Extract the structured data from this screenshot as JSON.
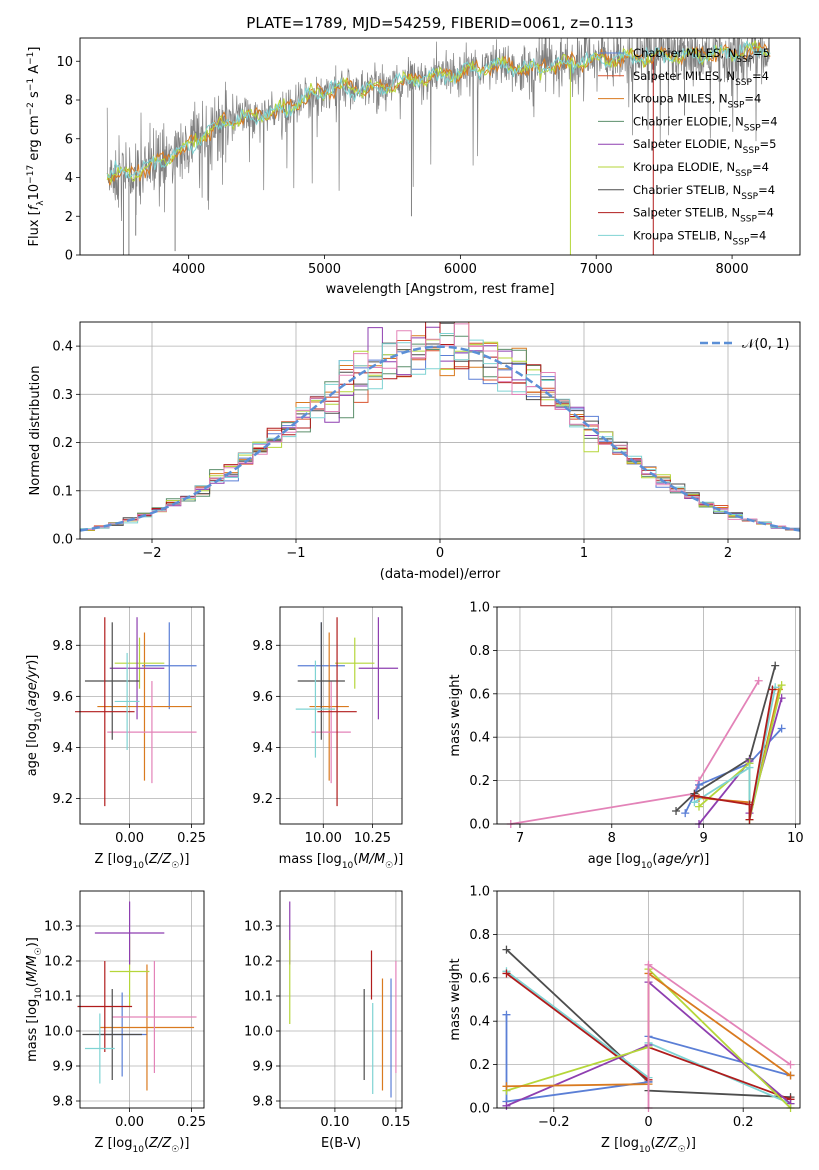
{
  "figure_title": "PLATE=1789, MJD=54259, FIBERID=0061, z=0.113",
  "colors": {
    "chabrier_miles": "#5b7fd6",
    "salpeter_miles": "#d9542f",
    "kroupa_miles": "#d97a1f",
    "chabrier_elodie": "#5c8f6b",
    "salpeter_elodie": "#8e3fb0",
    "kroupa_elodie": "#b5d63a",
    "chabrier_stelib": "#4d4d4d",
    "salpeter_stelib": "#b01c1c",
    "kroupa_stelib": "#7fd3d3",
    "pink": "#e383b8",
    "observed": "#808080",
    "normal_curve": "#5b8fd6",
    "grid": "#b0b0b0"
  },
  "legend_entries": [
    {
      "label": "Chabrier MILES, N",
      "sub": "SSP",
      "tail": "=5",
      "color_key": "chabrier_miles"
    },
    {
      "label": "Salpeter MILES, N",
      "sub": "SSP",
      "tail": "=4",
      "color_key": "salpeter_miles"
    },
    {
      "label": "Kroupa MILES, N",
      "sub": "SSP",
      "tail": "=4",
      "color_key": "kroupa_miles"
    },
    {
      "label": "Chabrier ELODIE, N",
      "sub": "SSP",
      "tail": "=4",
      "color_key": "chabrier_elodie"
    },
    {
      "label": "Salpeter ELODIE, N",
      "sub": "SSP",
      "tail": "=5",
      "color_key": "salpeter_elodie"
    },
    {
      "label": "Kroupa ELODIE, N",
      "sub": "SSP",
      "tail": "=4",
      "color_key": "kroupa_elodie"
    },
    {
      "label": "Chabrier STELIB, N",
      "sub": "SSP",
      "tail": "=4",
      "color_key": "chabrier_stelib"
    },
    {
      "label": "Salpeter STELIB, N",
      "sub": "SSP",
      "tail": "=4",
      "color_key": "salpeter_stelib"
    },
    {
      "label": "Kroupa STELIB, N",
      "sub": "SSP",
      "tail": "=4",
      "color_key": "kroupa_stelib"
    }
  ],
  "chart_data": [
    {
      "id": "spectrum",
      "type": "line",
      "title": "PLATE=1789, MJD=54259, FIBERID=0061, z=0.113",
      "xlabel": "wavelength [Angstrom, rest frame]",
      "ylabel": "Flux [fλ10⁻¹⁷ erg cm⁻² s⁻¹ A⁻¹]",
      "xlim": [
        3200,
        8500
      ],
      "ylim": [
        0,
        11.2
      ],
      "xticks": [
        4000,
        5000,
        6000,
        7000,
        8000
      ],
      "yticks": [
        0,
        2,
        4,
        6,
        8,
        10
      ],
      "continuum": [
        [
          3400,
          4.1
        ],
        [
          3600,
          4.2
        ],
        [
          3800,
          4.9
        ],
        [
          3950,
          5.4
        ],
        [
          4100,
          6.1
        ],
        [
          4300,
          7.0
        ],
        [
          4500,
          7.2
        ],
        [
          4700,
          7.5
        ],
        [
          4900,
          8.2
        ],
        [
          5100,
          8.7
        ],
        [
          5300,
          8.5
        ],
        [
          5500,
          8.8
        ],
        [
          5700,
          9.1
        ],
        [
          5900,
          9.3
        ],
        [
          6100,
          9.6
        ],
        [
          6300,
          9.8
        ],
        [
          6500,
          9.6
        ],
        [
          6700,
          9.8
        ],
        [
          6900,
          10.0
        ],
        [
          7100,
          10.1
        ],
        [
          7300,
          10.2
        ],
        [
          7500,
          10.3
        ],
        [
          7700,
          10.3
        ],
        [
          7900,
          10.4
        ],
        [
          8100,
          10.5
        ],
        [
          8300,
          10.6
        ]
      ],
      "legend_position": "upper right"
    },
    {
      "id": "residuals",
      "type": "histogram",
      "xlabel": "(data-model)/error",
      "ylabel": "Normed distribution",
      "xlim": [
        -2.5,
        2.5
      ],
      "ylim": [
        0,
        0.45
      ],
      "xticks": [
        -2,
        -1,
        0,
        1,
        2
      ],
      "yticks": [
        0.0,
        0.1,
        0.2,
        0.3,
        0.4
      ],
      "bin_width": 0.1,
      "reference_curve_label": "𝒩(0, 1)",
      "legend_position": "upper right"
    },
    {
      "id": "age_vs_Z",
      "type": "errorbar",
      "xlabel": "Z [log10(Z/Z☉)]",
      "ylabel": "age  [log10(age/yr)]",
      "xlim": [
        -0.2,
        0.3
      ],
      "ylim": [
        9.1,
        9.95
      ],
      "xticks": [
        0.0,
        0.25
      ],
      "xtick_labels": [
        "0.00",
        "0.25"
      ],
      "yticks": [
        9.2,
        9.4,
        9.6,
        9.8
      ],
      "points": [
        {
          "color_key": "chabrier_miles",
          "x": 0.16,
          "xerr": 0.11,
          "y": 9.72,
          "yerr": 0.17
        },
        {
          "color_key": "kroupa_miles",
          "x": 0.06,
          "xerr": 0.19,
          "y": 9.56,
          "yerr": 0.29
        },
        {
          "color_key": "kroupa_elodie",
          "x": 0.04,
          "xerr": 0.1,
          "y": 9.73,
          "yerr": 0.1
        },
        {
          "color_key": "salpeter_elodie",
          "x": 0.03,
          "xerr": 0.11,
          "y": 9.71,
          "yerr": 0.2
        },
        {
          "color_key": "pink",
          "x": 0.09,
          "xerr": 0.18,
          "y": 9.46,
          "yerr": 0.2
        },
        {
          "color_key": "chabrier_stelib",
          "x": -0.07,
          "xerr": 0.11,
          "y": 9.66,
          "yerr": 0.23
        },
        {
          "color_key": "salpeter_stelib",
          "x": -0.1,
          "xerr": 0.12,
          "y": 9.54,
          "yerr": 0.37
        },
        {
          "color_key": "kroupa_stelib",
          "x": -0.01,
          "xerr": 0.05,
          "y": 9.58,
          "yerr": 0.19
        }
      ]
    },
    {
      "id": "age_vs_mass",
      "type": "errorbar",
      "xlabel": "mass [log10(M/M☉)]",
      "ylabel": "",
      "xlim": [
        9.78,
        10.4
      ],
      "ylim": [
        9.1,
        9.95
      ],
      "xticks": [
        10.0,
        10.25
      ],
      "xtick_labels": [
        "10.00",
        "10.25"
      ],
      "yticks": [
        9.2,
        9.4,
        9.6,
        9.8
      ],
      "points": [
        {
          "color_key": "chabrier_miles",
          "x": 9.99,
          "xerr": 0.12,
          "y": 9.72,
          "yerr": 0.17
        },
        {
          "color_key": "kroupa_miles",
          "x": 10.03,
          "xerr": 0.1,
          "y": 9.56,
          "yerr": 0.29
        },
        {
          "color_key": "kroupa_elodie",
          "x": 10.16,
          "xerr": 0.1,
          "y": 9.73,
          "yerr": 0.1
        },
        {
          "color_key": "salpeter_elodie",
          "x": 10.28,
          "xerr": 0.1,
          "y": 9.71,
          "yerr": 0.2
        },
        {
          "color_key": "pink",
          "x": 10.04,
          "xerr": 0.1,
          "y": 9.46,
          "yerr": 0.2
        },
        {
          "color_key": "chabrier_stelib",
          "x": 9.99,
          "xerr": 0.12,
          "y": 9.66,
          "yerr": 0.23
        },
        {
          "color_key": "salpeter_stelib",
          "x": 10.07,
          "xerr": 0.1,
          "y": 9.54,
          "yerr": 0.37
        },
        {
          "color_key": "kroupa_stelib",
          "x": 9.96,
          "xerr": 0.1,
          "y": 9.55,
          "yerr": 0.19
        }
      ]
    },
    {
      "id": "mass_weight_vs_age",
      "type": "line",
      "xlabel": "age  [log10(age/yr)]",
      "ylabel": "mass weight",
      "xlim": [
        6.75,
        10.05
      ],
      "ylim": [
        0.0,
        1.0
      ],
      "xticks": [
        7,
        8,
        9,
        10
      ],
      "yticks": [
        0.0,
        0.2,
        0.4,
        0.6,
        0.8,
        1.0
      ],
      "series": [
        {
          "color_key": "pink",
          "points": [
            [
              6.9,
              0.0
            ],
            [
              8.9,
              0.14
            ],
            [
              8.95,
              0.2
            ],
            [
              9.6,
              0.66
            ]
          ]
        },
        {
          "color_key": "chabrier_miles",
          "points": [
            [
              8.8,
              0.05
            ],
            [
              8.95,
              0.18
            ],
            [
              9.5,
              0.28
            ],
            [
              9.85,
              0.44
            ]
          ]
        },
        {
          "color_key": "chabrier_stelib",
          "points": [
            [
              8.7,
              0.06
            ],
            [
              8.9,
              0.14
            ],
            [
              9.5,
              0.3
            ],
            [
              9.78,
              0.73
            ]
          ]
        },
        {
          "color_key": "kroupa_miles",
          "points": [
            [
              8.95,
              0.12
            ],
            [
              9.5,
              0.1
            ],
            [
              9.5,
              0.02
            ],
            [
              9.82,
              0.62
            ]
          ]
        },
        {
          "color_key": "salpeter_elodie",
          "points": [
            [
              8.95,
              0.0
            ],
            [
              9.5,
              0.29
            ],
            [
              9.5,
              0.05
            ],
            [
              9.85,
              0.58
            ]
          ]
        },
        {
          "color_key": "kroupa_elodie",
          "points": [
            [
              8.95,
              0.08
            ],
            [
              9.5,
              0.28
            ],
            [
              9.5,
              0.02
            ],
            [
              9.85,
              0.64
            ]
          ]
        },
        {
          "color_key": "kroupa_stelib",
          "points": [
            [
              8.9,
              0.1
            ],
            [
              9.5,
              0.26
            ],
            [
              9.5,
              0.02
            ],
            [
              9.78,
              0.63
            ]
          ]
        },
        {
          "color_key": "salpeter_stelib",
          "points": [
            [
              8.9,
              0.13
            ],
            [
              9.5,
              0.09
            ],
            [
              9.5,
              0.02
            ],
            [
              9.75,
              0.62
            ]
          ]
        }
      ]
    },
    {
      "id": "mass_vs_Z",
      "type": "errorbar",
      "xlabel": "Z [log10(Z/Z☉)]",
      "ylabel": "mass [log10(M/M☉)]",
      "xlim": [
        -0.2,
        0.3
      ],
      "ylim": [
        9.78,
        10.4
      ],
      "xticks": [
        0.0,
        0.25
      ],
      "xtick_labels": [
        "0.00",
        "0.25"
      ],
      "yticks": [
        9.8,
        9.9,
        10.0,
        10.1,
        10.2,
        10.3
      ],
      "points": [
        {
          "color_key": "chabrier_miles",
          "x": -0.03,
          "xerr": 0.1,
          "y": 9.99,
          "yerr": 0.12
        },
        {
          "color_key": "kroupa_miles",
          "x": 0.07,
          "xerr": 0.19,
          "y": 10.01,
          "yerr": 0.18
        },
        {
          "color_key": "kroupa_elodie",
          "x": 0.0,
          "xerr": 0.08,
          "y": 10.17,
          "yerr": 0.1
        },
        {
          "color_key": "salpeter_elodie",
          "x": 0.0,
          "xerr": 0.14,
          "y": 10.28,
          "yerr": 0.09
        },
        {
          "color_key": "pink",
          "x": 0.1,
          "xerr": 0.17,
          "y": 10.04,
          "yerr": 0.16
        },
        {
          "color_key": "chabrier_stelib",
          "x": -0.07,
          "xerr": 0.12,
          "y": 9.99,
          "yerr": 0.13
        },
        {
          "color_key": "salpeter_stelib",
          "x": -0.1,
          "xerr": 0.11,
          "y": 10.07,
          "yerr": 0.13
        },
        {
          "color_key": "kroupa_stelib",
          "x": -0.12,
          "xerr": 0.06,
          "y": 9.95,
          "yerr": 0.1
        }
      ]
    },
    {
      "id": "mass_vs_ebv",
      "type": "errorbar",
      "xlabel": "E(B-V)",
      "ylabel": "",
      "xlim": [
        0.055,
        0.155
      ],
      "ylim": [
        9.78,
        10.4
      ],
      "xticks": [
        0.1,
        0.15
      ],
      "xtick_labels": [
        "0.10",
        "0.15"
      ],
      "yticks": [
        9.8,
        9.9,
        10.0,
        10.1,
        10.2,
        10.3
      ],
      "points": [
        {
          "color_key": "salpeter_elodie",
          "x": 0.063,
          "xerr": 0,
          "y": 10.28,
          "yerr": 0.09
        },
        {
          "color_key": "kroupa_elodie",
          "x": 0.063,
          "xerr": 0,
          "y": 10.14,
          "yerr": 0.12
        },
        {
          "color_key": "chabrier_stelib",
          "x": 0.124,
          "xerr": 0,
          "y": 9.99,
          "yerr": 0.13
        },
        {
          "color_key": "salpeter_stelib",
          "x": 0.13,
          "xerr": 0,
          "y": 10.16,
          "yerr": 0.07
        },
        {
          "color_key": "kroupa_stelib",
          "x": 0.131,
          "xerr": 0,
          "y": 9.95,
          "yerr": 0.13
        },
        {
          "color_key": "kroupa_miles",
          "x": 0.139,
          "xerr": 0,
          "y": 9.99,
          "yerr": 0.16
        },
        {
          "color_key": "chabrier_miles",
          "x": 0.146,
          "xerr": 0,
          "y": 9.98,
          "yerr": 0.17
        },
        {
          "color_key": "pink",
          "x": 0.15,
          "xerr": 0,
          "y": 10.04,
          "yerr": 0.16
        }
      ]
    },
    {
      "id": "mass_weight_vs_Z",
      "type": "line",
      "xlabel": "Z [log10(Z/Z☉)]",
      "ylabel": "mass weight",
      "xlim": [
        -0.32,
        0.32
      ],
      "ylim": [
        0.0,
        1.0
      ],
      "xticks": [
        -0.2,
        0.0,
        0.2
      ],
      "yticks": [
        0.0,
        0.2,
        0.4,
        0.6,
        0.8,
        1.0
      ],
      "series": [
        {
          "color_key": "chabrier_stelib",
          "points": [
            [
              -0.3,
              0.73
            ],
            [
              0.0,
              0.12
            ],
            [
              0.0,
              0.08
            ],
            [
              0.3,
              0.05
            ]
          ]
        },
        {
          "color_key": "kroupa_stelib",
          "points": [
            [
              -0.3,
              0.63
            ],
            [
              0.0,
              0.14
            ],
            [
              0.0,
              0.3
            ],
            [
              0.3,
              0.02
            ]
          ]
        },
        {
          "color_key": "salpeter_stelib",
          "points": [
            [
              -0.3,
              0.62
            ],
            [
              0.0,
              0.13
            ],
            [
              0.0,
              0.28
            ],
            [
              0.3,
              0.04
            ]
          ]
        },
        {
          "color_key": "chabrier_miles",
          "points": [
            [
              -0.3,
              0.43
            ],
            [
              -0.3,
              0.03
            ],
            [
              0.0,
              0.12
            ],
            [
              0.0,
              0.33
            ],
            [
              0.3,
              0.15
            ]
          ]
        },
        {
          "color_key": "salpeter_elodie",
          "points": [
            [
              -0.3,
              0.01
            ],
            [
              0.0,
              0.29
            ],
            [
              0.0,
              0.58
            ],
            [
              0.3,
              0.02
            ]
          ]
        },
        {
          "color_key": "kroupa_elodie",
          "points": [
            [
              -0.3,
              0.08
            ],
            [
              0.0,
              0.28
            ],
            [
              0.0,
              0.64
            ],
            [
              0.3,
              0.0
            ]
          ]
        },
        {
          "color_key": "kroupa_miles",
          "points": [
            [
              -0.3,
              0.1
            ],
            [
              0.0,
              0.11
            ],
            [
              0.0,
              0.62
            ],
            [
              0.3,
              0.15
            ]
          ]
        },
        {
          "color_key": "pink",
          "points": [
            [
              0.0,
              0.0
            ],
            [
              0.0,
              0.66
            ],
            [
              0.3,
              0.2
            ]
          ]
        }
      ]
    }
  ]
}
